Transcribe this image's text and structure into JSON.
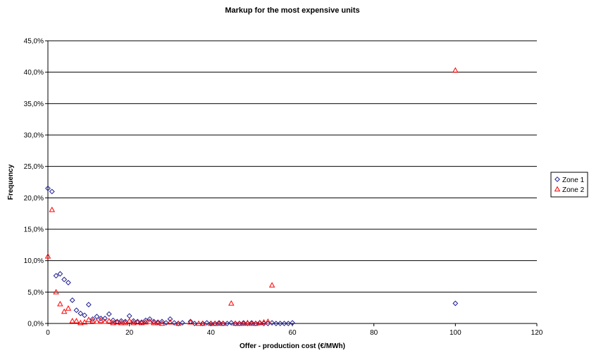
{
  "chart_data": {
    "type": "scatter",
    "title": "Markup for the most expensive units",
    "xlabel": "Offer - production cost (€/MWh)",
    "ylabel": "Frequency",
    "xlim": [
      0,
      120
    ],
    "ylim": [
      0,
      45
    ],
    "xticks": [
      "0",
      "20",
      "40",
      "60",
      "80",
      "100",
      "120"
    ],
    "yticks": [
      "0,0%",
      "5,0%",
      "10,0%",
      "15,0%",
      "20,0%",
      "25,0%",
      "30,0%",
      "35,0%",
      "40,0%",
      "45,0%"
    ],
    "grid": "horizontal",
    "legend_position": "right",
    "series": [
      {
        "name": "Zone 1",
        "marker": "diamond",
        "color": "#1f1f8f",
        "points": [
          [
            0,
            21.5
          ],
          [
            1,
            21.0
          ],
          [
            2,
            7.6
          ],
          [
            3,
            7.9
          ],
          [
            4,
            7.0
          ],
          [
            5,
            6.5
          ],
          [
            6,
            3.7
          ],
          [
            7,
            2.1
          ],
          [
            8,
            1.6
          ],
          [
            9,
            1.3
          ],
          [
            10,
            3.0
          ],
          [
            11,
            0.7
          ],
          [
            12,
            1.1
          ],
          [
            13,
            0.8
          ],
          [
            14,
            0.8
          ],
          [
            15,
            1.5
          ],
          [
            16,
            0.5
          ],
          [
            17,
            0.3
          ],
          [
            18,
            0.4
          ],
          [
            19,
            0.3
          ],
          [
            20,
            1.2
          ],
          [
            21,
            0.4
          ],
          [
            22,
            0.3
          ],
          [
            23,
            0.2
          ],
          [
            24,
            0.5
          ],
          [
            25,
            0.7
          ],
          [
            26,
            0.3
          ],
          [
            27,
            0.2
          ],
          [
            28,
            0.3
          ],
          [
            29,
            0.1
          ],
          [
            30,
            0.7
          ],
          [
            31,
            0.1
          ],
          [
            32,
            0.0
          ],
          [
            33,
            0.1
          ],
          [
            35,
            0.3
          ],
          [
            36,
            0.0
          ],
          [
            38,
            0.0
          ],
          [
            39,
            0.1
          ],
          [
            40,
            0.0
          ],
          [
            41,
            0.0
          ],
          [
            42,
            0.1
          ],
          [
            43,
            0.0
          ],
          [
            44,
            0.0
          ],
          [
            45,
            0.1
          ],
          [
            46,
            0.0
          ],
          [
            47,
            0.0
          ],
          [
            48,
            0.1
          ],
          [
            49,
            0.0
          ],
          [
            50,
            0.1
          ],
          [
            51,
            0.0
          ],
          [
            52,
            0.1
          ],
          [
            53,
            0.0
          ],
          [
            54,
            0.0
          ],
          [
            55,
            0.1
          ],
          [
            56,
            0.0
          ],
          [
            57,
            0.0
          ],
          [
            58,
            0.0
          ],
          [
            59,
            0.0
          ],
          [
            60,
            0.1
          ],
          [
            100,
            3.2
          ]
        ]
      },
      {
        "name": "Zone 2",
        "marker": "triangle",
        "color": "#ff0000",
        "points": [
          [
            0,
            10.7
          ],
          [
            1,
            18.1
          ],
          [
            2,
            5.0
          ],
          [
            3,
            3.1
          ],
          [
            4,
            1.9
          ],
          [
            5,
            2.4
          ],
          [
            6,
            0.4
          ],
          [
            7,
            0.4
          ],
          [
            8,
            0.1
          ],
          [
            9,
            0.2
          ],
          [
            10,
            0.6
          ],
          [
            11,
            0.4
          ],
          [
            12,
            0.3
          ],
          [
            13,
            0.5
          ],
          [
            14,
            0.3
          ],
          [
            15,
            0.4
          ],
          [
            16,
            0.1
          ],
          [
            17,
            0.2
          ],
          [
            18,
            0.1
          ],
          [
            19,
            0.1
          ],
          [
            20,
            0.4
          ],
          [
            21,
            0.1
          ],
          [
            22,
            0.2
          ],
          [
            23,
            0.1
          ],
          [
            24,
            0.2
          ],
          [
            25,
            0.3
          ],
          [
            26,
            0.1
          ],
          [
            27,
            0.1
          ],
          [
            28,
            0.0
          ],
          [
            30,
            0.2
          ],
          [
            32,
            0.0
          ],
          [
            35,
            0.2
          ],
          [
            37,
            0.0
          ],
          [
            38,
            0.0
          ],
          [
            40,
            0.0
          ],
          [
            41,
            0.0
          ],
          [
            42,
            0.0
          ],
          [
            43,
            0.0
          ],
          [
            45,
            3.2
          ],
          [
            46,
            0.0
          ],
          [
            47,
            0.0
          ],
          [
            48,
            0.0
          ],
          [
            49,
            0.1
          ],
          [
            50,
            0.0
          ],
          [
            51,
            0.0
          ],
          [
            52,
            0.1
          ],
          [
            53,
            0.2
          ],
          [
            54,
            0.3
          ],
          [
            55,
            6.1
          ],
          [
            100,
            40.3
          ]
        ]
      }
    ]
  }
}
